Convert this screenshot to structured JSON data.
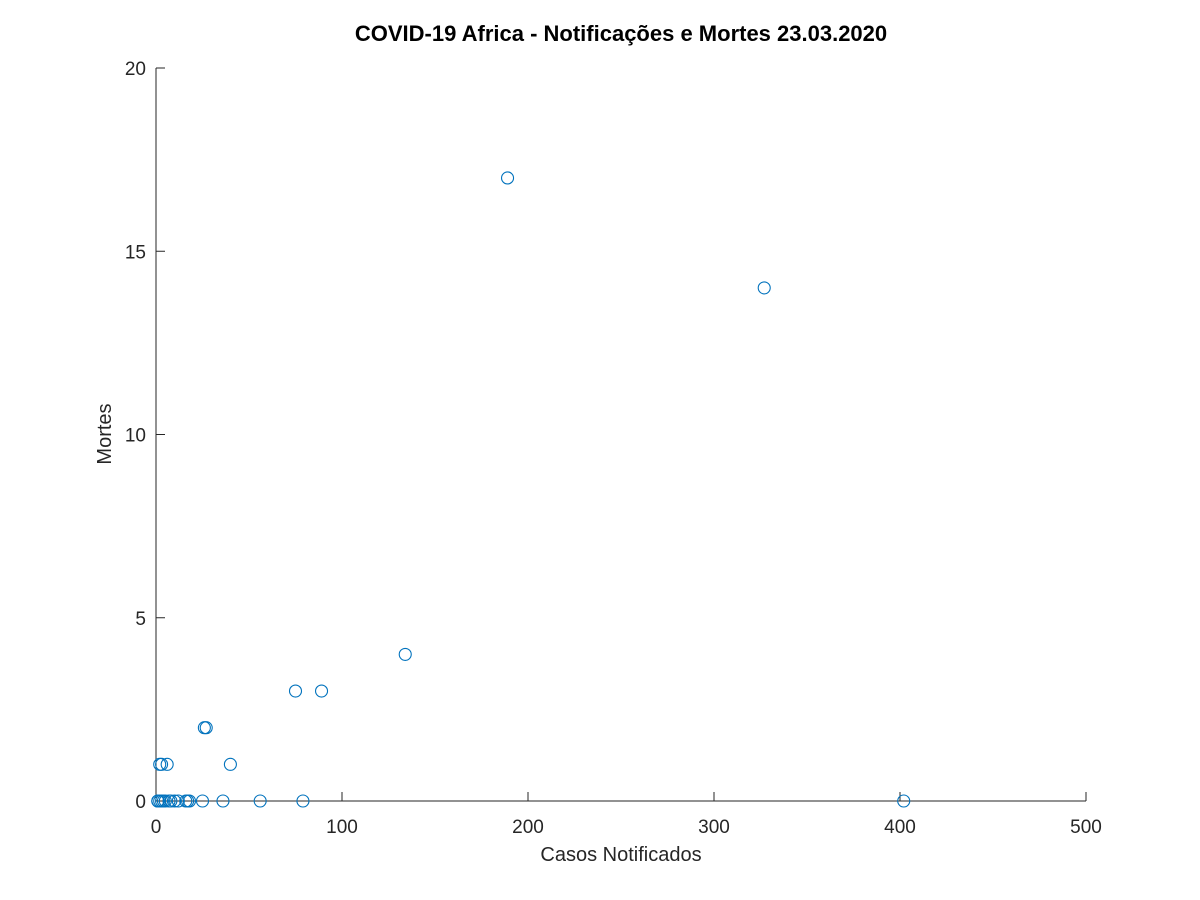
{
  "chart_data": {
    "type": "scatter",
    "title": "COVID-19 Africa - Notificações e Mortes 23.03.2020",
    "xlabel": "Casos Notificados",
    "ylabel": "Mortes",
    "xlim": [
      0,
      500
    ],
    "ylim": [
      0,
      20
    ],
    "xticks": [
      0,
      100,
      200,
      300,
      400,
      500
    ],
    "yticks": [
      0,
      5,
      10,
      15,
      20
    ],
    "xtick_labels": [
      "0",
      "100",
      "200",
      "300",
      "400",
      "500"
    ],
    "ytick_labels": [
      "0",
      "5",
      "10",
      "15",
      "20"
    ],
    "grid": false,
    "marker": "open-circle",
    "marker_color": "#0072BD",
    "points": [
      {
        "x": 189,
        "y": 17
      },
      {
        "x": 327,
        "y": 14
      },
      {
        "x": 134,
        "y": 4
      },
      {
        "x": 75,
        "y": 3
      },
      {
        "x": 89,
        "y": 3
      },
      {
        "x": 26,
        "y": 2
      },
      {
        "x": 27,
        "y": 2
      },
      {
        "x": 2,
        "y": 1
      },
      {
        "x": 3,
        "y": 1
      },
      {
        "x": 6,
        "y": 1
      },
      {
        "x": 40,
        "y": 1
      },
      {
        "x": 402,
        "y": 0
      },
      {
        "x": 79,
        "y": 0
      },
      {
        "x": 56,
        "y": 0
      },
      {
        "x": 36,
        "y": 0
      },
      {
        "x": 25,
        "y": 0
      },
      {
        "x": 18,
        "y": 0
      },
      {
        "x": 17,
        "y": 0
      },
      {
        "x": 16,
        "y": 0
      },
      {
        "x": 12,
        "y": 0
      },
      {
        "x": 10,
        "y": 0
      },
      {
        "x": 8,
        "y": 0
      },
      {
        "x": 7,
        "y": 0
      },
      {
        "x": 5,
        "y": 0
      },
      {
        "x": 4,
        "y": 0
      },
      {
        "x": 3,
        "y": 0
      },
      {
        "x": 2,
        "y": 0
      },
      {
        "x": 1,
        "y": 0
      },
      {
        "x": 1,
        "y": 0
      },
      {
        "x": 1,
        "y": 0
      }
    ]
  }
}
